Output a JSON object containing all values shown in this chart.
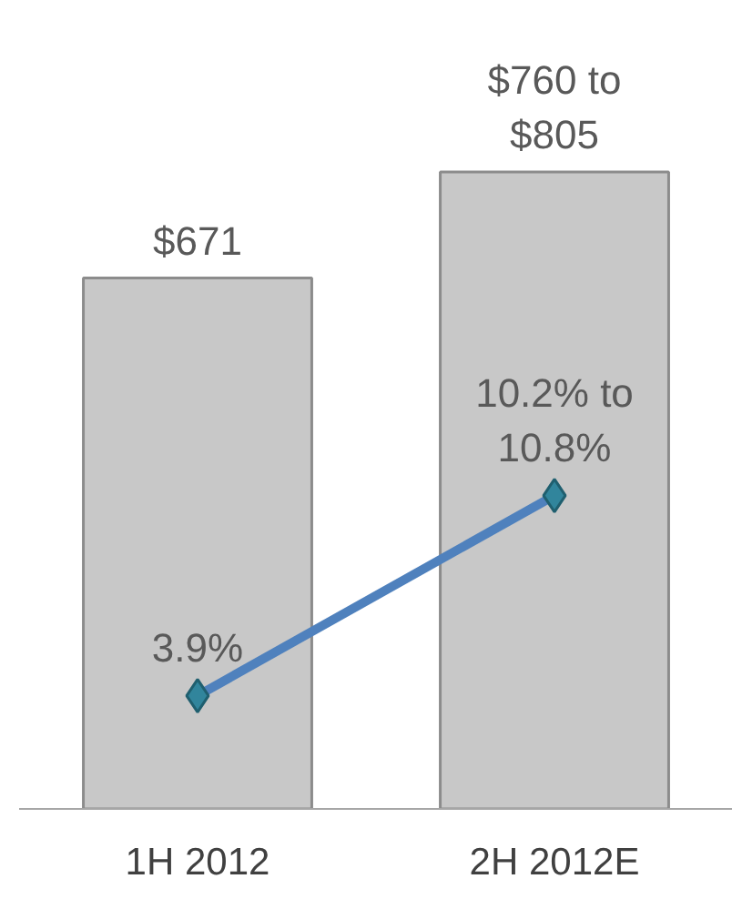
{
  "chart_data": {
    "type": "bar",
    "categories": [
      "1H 2012",
      "2H 2012E"
    ],
    "series": [
      {
        "color": "#c8c8c8",
        "values": [
          671,
          805
        ],
        "value_labels": [
          "$671",
          "$760 to $805"
        ]
      },
      {
        "type": "line",
        "axis": "y2",
        "color": "#4f81bd",
        "values": [
          3.9,
          10.8
        ],
        "value_labels": [
          "3.9%",
          "10.2% to 10.8%"
        ],
        "marker": "diamond",
        "line_style": "solid"
      }
    ]
  }
}
